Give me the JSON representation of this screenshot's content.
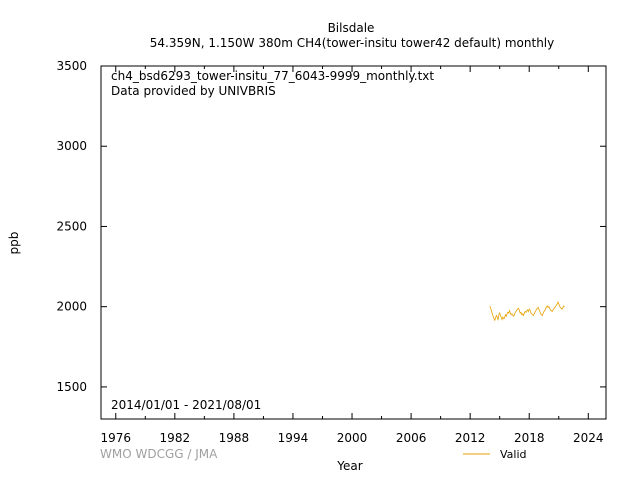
{
  "chart_data": {
    "type": "line",
    "title": "Bilsdale",
    "subtitle": "54.359N, 1.150W 380m    CH4(tower-insitu tower42 default) monthly",
    "xlabel": "Year",
    "ylabel": "ppb",
    "xlim": [
      1974.5,
      2025.8
    ],
    "ylim": [
      1300,
      3500
    ],
    "x_ticks": [
      1976,
      1982,
      1988,
      1994,
      2000,
      2006,
      2012,
      2018,
      2024
    ],
    "y_ticks": [
      1500,
      2000,
      2500,
      3000,
      3500
    ],
    "file_label": "ch4_bsd6293_tower-insitu_77_6043-9999_monthly.txt",
    "provider_label": "Data provided by UNIVBRIS",
    "date_range": "2014/01/01 - 2021/08/01",
    "watermark": "WMO WDCGG / JMA",
    "legend_position": "bottom-right",
    "series": [
      {
        "name": "Valid",
        "color": "#e6a000",
        "x": [
          2014.0,
          2014.08,
          2014.17,
          2014.25,
          2014.33,
          2014.42,
          2014.5,
          2014.58,
          2014.67,
          2014.75,
          2014.83,
          2014.92,
          2015.0,
          2015.08,
          2015.17,
          2015.25,
          2015.33,
          2015.42,
          2015.5,
          2015.58,
          2015.67,
          2015.75,
          2015.83,
          2015.92,
          2016.0,
          2016.08,
          2016.17,
          2016.25,
          2016.33,
          2016.42,
          2016.5,
          2016.58,
          2016.67,
          2016.75,
          2016.83,
          2016.92,
          2017.0,
          2017.08,
          2017.17,
          2017.25,
          2017.33,
          2017.42,
          2017.5,
          2017.58,
          2017.67,
          2017.75,
          2017.83,
          2017.92,
          2018.0,
          2018.08,
          2018.17,
          2018.25,
          2018.33,
          2018.42,
          2018.5,
          2018.58,
          2018.67,
          2018.75,
          2018.83,
          2018.92,
          2019.0,
          2019.08,
          2019.17,
          2019.25,
          2019.33,
          2019.42,
          2019.5,
          2019.58,
          2019.67,
          2019.75,
          2019.83,
          2019.92,
          2020.0,
          2020.08,
          2020.17,
          2020.25,
          2020.33,
          2020.42,
          2020.5,
          2020.58,
          2020.67,
          2020.75,
          2020.83,
          2020.92,
          2021.0,
          2021.08,
          2021.17,
          2021.25,
          2021.33,
          2021.42,
          2021.5,
          2021.58
        ],
        "values": [
          2005,
          1990,
          1975,
          1955,
          1940,
          1925,
          1915,
          1930,
          1945,
          1935,
          1920,
          1950,
          1960,
          1945,
          1930,
          1920,
          1935,
          1925,
          1930,
          1950,
          1940,
          1955,
          1965,
          1960,
          1975,
          1960,
          1950,
          1955,
          1945,
          1940,
          1950,
          1965,
          1970,
          1980,
          1985,
          1990,
          1975,
          1960,
          1965,
          1950,
          1955,
          1945,
          1960,
          1970,
          1965,
          1975,
          1980,
          1970,
          1985,
          1980,
          1960,
          1955,
          1950,
          1945,
          1955,
          1965,
          1975,
          1985,
          1990,
          1995,
          1980,
          1970,
          1955,
          1950,
          1945,
          1960,
          1970,
          1975,
          1990,
          2000,
          2005,
          1995,
          2000,
          1990,
          1980,
          1975,
          1970,
          1980,
          1985,
          1995,
          2000,
          2010,
          2015,
          2030,
          2020,
          2005,
          1995,
          1990,
          1985,
          1995,
          2005,
          2000
        ]
      }
    ]
  }
}
